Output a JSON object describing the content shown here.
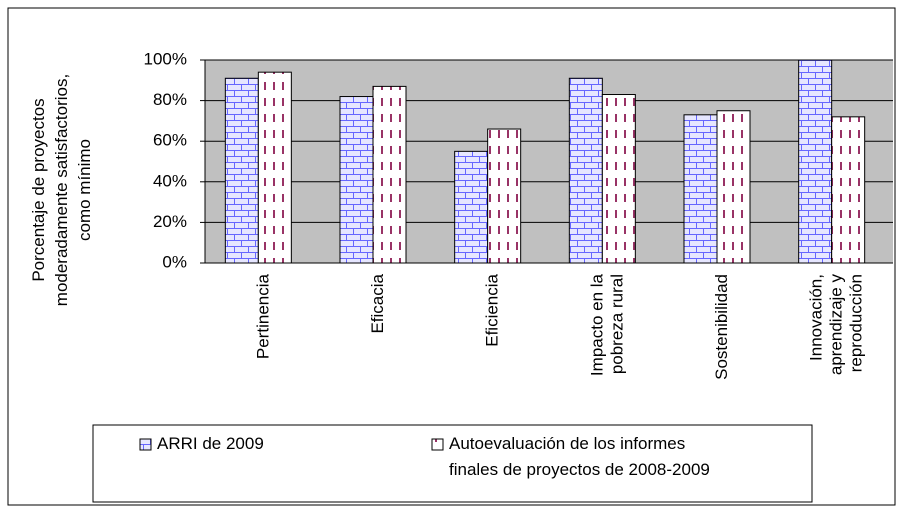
{
  "chart_data": {
    "type": "bar",
    "y_label": "Porcentaje de proyectos\nmoderadamente  satisfactorios,\ncomo mínimo",
    "categories": [
      "Pertinencia",
      "Eficacia",
      "Eficiencia",
      "Impacto en la\npobreza rural",
      "Sostenibilidad",
      "Innovación,\naprendizaje y\nreproducción"
    ],
    "series": [
      {
        "name": "ARRI de 2009",
        "color": "#6666ff",
        "values": [
          91,
          82,
          55,
          91,
          73,
          100
        ]
      },
      {
        "name": "Autoevaluación de los informes\nfinales de proyectos de 2008-2009",
        "color": "#993366",
        "values": [
          94,
          87,
          66,
          83,
          75,
          72
        ]
      }
    ],
    "ylim": [
      0,
      100
    ],
    "yticks": [
      {
        "value": 0,
        "label": "0%"
      },
      {
        "value": 20,
        "label": "20%"
      },
      {
        "value": 40,
        "label": "40%"
      },
      {
        "value": 60,
        "label": "60%"
      },
      {
        "value": 80,
        "label": "80%"
      },
      {
        "value": 100,
        "label": "100%"
      }
    ],
    "grid": true,
    "legend": "bottom"
  }
}
